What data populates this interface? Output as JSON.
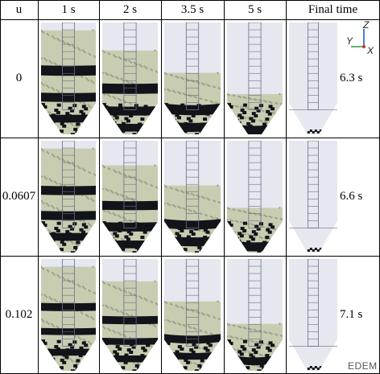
{
  "table": {
    "header": {
      "u": "u",
      "t1": "1 s",
      "t2": "2 s",
      "t3": "3.5 s",
      "t4": "5 s",
      "final": "Final time"
    },
    "rows": [
      {
        "u": "0",
        "final_time": "6.3 s",
        "levels": [
          0.93,
          0.75,
          0.55,
          0.36
        ],
        "bands": [
          [
            0.32,
            0.41
          ],
          [
            0.58,
            0.66
          ],
          [
            0.79,
            0.86
          ]
        ]
      },
      {
        "u": "0.0607",
        "final_time": "6.6 s",
        "levels": [
          0.93,
          0.78,
          0.6,
          0.4
        ],
        "bands": [
          [
            0.34,
            0.42
          ],
          [
            0.58,
            0.66
          ],
          [
            0.79,
            0.86
          ]
        ]
      },
      {
        "u": "0.102",
        "final_time": "7.1 s",
        "levels": [
          0.93,
          0.8,
          0.62,
          0.42
        ],
        "bands": [
          [
            0.33,
            0.4
          ],
          [
            0.57,
            0.63
          ],
          [
            0.77,
            0.83
          ]
        ]
      }
    ]
  },
  "axis": {
    "z": "Z",
    "y": "Y",
    "x": "X"
  },
  "watermark": "EDEM",
  "colors": {
    "particle": "#c8cdb2",
    "dark": "#111418",
    "silo": "#e6e8ef",
    "frame": "#6a6f88"
  }
}
